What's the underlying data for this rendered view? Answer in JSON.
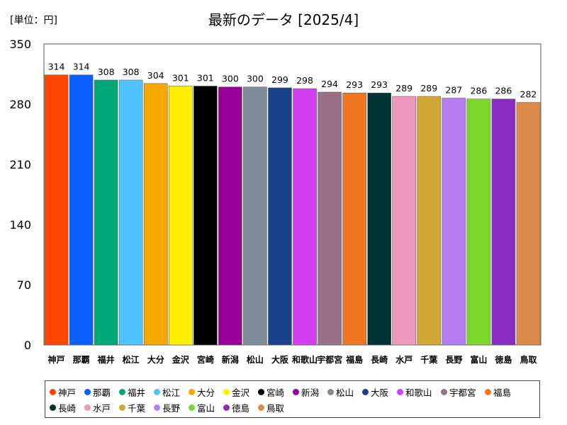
{
  "unit_label": "[単位：円]",
  "chart_data": {
    "type": "bar",
    "title": "最新のデータ [2025/4]",
    "xlabel": "",
    "ylabel": "",
    "ylim": [
      0,
      350
    ],
    "yticks": [
      0,
      70,
      140,
      210,
      280,
      350
    ],
    "grid": false,
    "legend_position": "bottom",
    "categories": [
      "神戸",
      "那覇",
      "福井",
      "松江",
      "大分",
      "金沢",
      "宮崎",
      "新潟",
      "松山",
      "大阪",
      "和歌山",
      "宇都宮",
      "福島",
      "長崎",
      "水戸",
      "千葉",
      "長野",
      "富山",
      "徳島",
      "鳥取"
    ],
    "values": [
      314,
      314,
      308,
      308,
      304,
      301,
      301,
      300,
      300,
      299,
      298,
      294,
      293,
      293,
      289,
      289,
      287,
      286,
      286,
      282
    ],
    "colors": [
      "#ff4500",
      "#0b5fff",
      "#00a878",
      "#4fc3ff",
      "#f5a800",
      "#ffee00",
      "#000000",
      "#990099",
      "#7f8c97",
      "#1a428a",
      "#d23ff0",
      "#9a7088",
      "#ef7722",
      "#003333",
      "#f097bc",
      "#d1a834",
      "#b77ef0",
      "#7cd62c",
      "#8a2bc2",
      "#db8a4a"
    ]
  }
}
